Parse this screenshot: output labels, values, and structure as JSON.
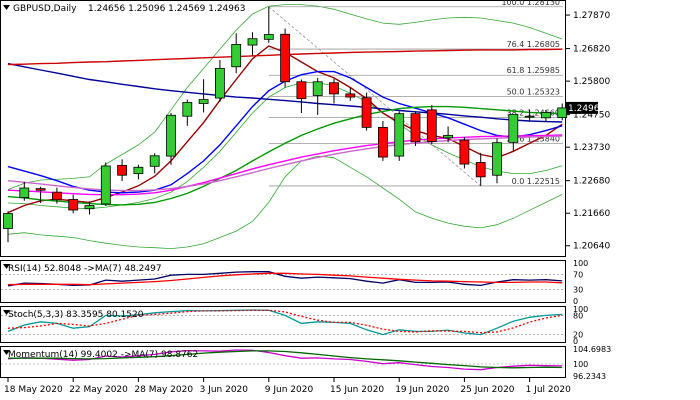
{
  "colors": {
    "bull": "#33cc33",
    "bear": "#ff0000",
    "candle_outline": "#000000",
    "ma_darkred": "#990000",
    "ma_blue": "#0000ff",
    "ma_navy": "#000099",
    "ma_red": "#cc0000",
    "ma_green": "#009900",
    "ma_magenta": "#ff00ff",
    "ma_violet": "#cc66cc",
    "bollinger": "#33aa33",
    "fib": "#999999",
    "rsi": "#000066",
    "rsi_ma": "#ff0000",
    "stoch_main": "#009999",
    "stoch_signal": "#ff0000",
    "momentum": "#cc00cc",
    "momentum_ma": "#006600",
    "label_bg": "#ffffff"
  },
  "main": {
    "title": "GBPUSD,Daily",
    "ohlc_text": "1.24656 1.25096 1.24569 1.24963",
    "current_price_label": "1.24963",
    "price_ticks": [
      "1.27870",
      "1.26820",
      "1.25800",
      "1.24750",
      "1.23730",
      "1.22680",
      "1.21660",
      "1.20640"
    ],
    "price_tick_values": [
      1.2787,
      1.2682,
      1.258,
      1.2475,
      1.2373,
      1.2268,
      1.2166,
      1.2064
    ],
    "fib_levels": [
      {
        "label": "100.0 1.28130",
        "value": 1.2813
      },
      {
        "label": "76.4 1.26805",
        "value": 1.26805
      },
      {
        "label": "61.8 1.25985",
        "value": 1.25985
      },
      {
        "label": "50.0 1.25323",
        "value": 1.25323
      },
      {
        "label": "38.2 1.24660",
        "value": 1.2466
      },
      {
        "label": "23.6 1.23840",
        "value": 1.2384
      },
      {
        "label": "0.0 1.22515",
        "value": 1.22515
      }
    ]
  },
  "rsi": {
    "label": "RSI(14) 52.8048 ->MA(7) 48.2497",
    "ticks": [
      "100",
      "70",
      "30",
      "0"
    ],
    "tick_values": [
      100,
      70,
      30,
      0
    ]
  },
  "stoch": {
    "label": "Stoch(5,3,3) 83.3595 80.1520",
    "ticks": [
      "100",
      "80",
      "20",
      "0"
    ],
    "tick_values": [
      100,
      80,
      20,
      0
    ]
  },
  "momentum": {
    "label": "Momentum(14) 99.4002 ->MA(7) 98.8762",
    "ticks": [
      "104.6983",
      "100",
      "96.2343"
    ],
    "tick_values": [
      104.6983,
      100,
      96.2343
    ]
  },
  "x_axis": {
    "labels": [
      "18 May 2020",
      "22 May 2020",
      "28 May 2020",
      "3 Jun 2020",
      "9 Jun 2020",
      "15 Jun 2020",
      "19 Jun 2020",
      "25 Jun 2020",
      "1 Jul 2020"
    ],
    "label_index": [
      0,
      4,
      8,
      12,
      16,
      20,
      24,
      28,
      32
    ]
  },
  "chart_data": {
    "type": "candlestick",
    "ylim": [
      1.2035,
      1.2828
    ],
    "candles": [
      {
        "o": 1.2118,
        "h": 1.2172,
        "l": 1.2075,
        "c": 1.2165
      },
      {
        "o": 1.2215,
        "h": 1.2264,
        "l": 1.2205,
        "c": 1.2245
      },
      {
        "o": 1.2243,
        "h": 1.2249,
        "l": 1.2198,
        "c": 1.2238
      },
      {
        "o": 1.2232,
        "h": 1.2246,
        "l": 1.2196,
        "c": 1.2208
      },
      {
        "o": 1.2209,
        "h": 1.2224,
        "l": 1.2166,
        "c": 1.2176
      },
      {
        "o": 1.218,
        "h": 1.2203,
        "l": 1.2162,
        "c": 1.219
      },
      {
        "o": 1.2195,
        "h": 1.2325,
        "l": 1.2189,
        "c": 1.2314
      },
      {
        "o": 1.2316,
        "h": 1.2335,
        "l": 1.2267,
        "c": 1.2285
      },
      {
        "o": 1.229,
        "h": 1.2318,
        "l": 1.2272,
        "c": 1.231
      },
      {
        "o": 1.2313,
        "h": 1.2354,
        "l": 1.2291,
        "c": 1.2346
      },
      {
        "o": 1.2345,
        "h": 1.248,
        "l": 1.2318,
        "c": 1.2473
      },
      {
        "o": 1.247,
        "h": 1.2522,
        "l": 1.244,
        "c": 1.2513
      },
      {
        "o": 1.251,
        "h": 1.2586,
        "l": 1.2482,
        "c": 1.2522
      },
      {
        "o": 1.2527,
        "h": 1.2646,
        "l": 1.2515,
        "c": 1.262
      },
      {
        "o": 1.2625,
        "h": 1.273,
        "l": 1.2605,
        "c": 1.2695
      },
      {
        "o": 1.2693,
        "h": 1.2733,
        "l": 1.266,
        "c": 1.2713
      },
      {
        "o": 1.2711,
        "h": 1.2812,
        "l": 1.27,
        "c": 1.2726
      },
      {
        "o": 1.2727,
        "h": 1.2745,
        "l": 1.256,
        "c": 1.2578
      },
      {
        "o": 1.2578,
        "h": 1.2585,
        "l": 1.248,
        "c": 1.2525
      },
      {
        "o": 1.2535,
        "h": 1.259,
        "l": 1.2474,
        "c": 1.2578
      },
      {
        "o": 1.2575,
        "h": 1.2587,
        "l": 1.251,
        "c": 1.254
      },
      {
        "o": 1.254,
        "h": 1.2559,
        "l": 1.2518,
        "c": 1.253
      },
      {
        "o": 1.2528,
        "h": 1.2544,
        "l": 1.2425,
        "c": 1.2435
      },
      {
        "o": 1.2435,
        "h": 1.2455,
        "l": 1.233,
        "c": 1.2342
      },
      {
        "o": 1.2345,
        "h": 1.2485,
        "l": 1.233,
        "c": 1.2478
      },
      {
        "o": 1.2478,
        "h": 1.2485,
        "l": 1.2377,
        "c": 1.239
      },
      {
        "o": 1.249,
        "h": 1.2505,
        "l": 1.2383,
        "c": 1.2391
      },
      {
        "o": 1.2402,
        "h": 1.2438,
        "l": 1.2388,
        "c": 1.241
      },
      {
        "o": 1.2395,
        "h": 1.2405,
        "l": 1.2306,
        "c": 1.232
      },
      {
        "o": 1.2325,
        "h": 1.2355,
        "l": 1.2252,
        "c": 1.228
      },
      {
        "o": 1.2285,
        "h": 1.24,
        "l": 1.226,
        "c": 1.2387
      },
      {
        "o": 1.2388,
        "h": 1.2477,
        "l": 1.2362,
        "c": 1.2476
      },
      {
        "o": 1.2468,
        "h": 1.2491,
        "l": 1.2456,
        "c": 1.247
      },
      {
        "o": 1.2465,
        "h": 1.249,
        "l": 1.2455,
        "c": 1.2482
      },
      {
        "o": 1.2466,
        "h": 1.251,
        "l": 1.2457,
        "c": 1.2496
      }
    ],
    "overlays": [
      {
        "color": "ma_darkred",
        "values": [
          1.2168,
          1.219,
          1.2205,
          1.221,
          1.2205,
          1.22,
          1.2215,
          1.2232,
          1.2252,
          1.2282,
          1.233,
          1.239,
          1.245,
          1.252,
          1.2585,
          1.265,
          1.269,
          1.267,
          1.264,
          1.261,
          1.259,
          1.256,
          1.2525,
          1.248,
          1.245,
          1.2425,
          1.241,
          1.24,
          1.2375,
          1.235,
          1.234,
          1.236,
          1.2385,
          1.241,
          1.2445
        ]
      },
      {
        "color": "ma_blue",
        "values": [
          1.2312,
          1.2298,
          1.2284,
          1.2268,
          1.225,
          1.2238,
          1.2232,
          1.223,
          1.2232,
          1.2238,
          1.2255,
          1.229,
          1.233,
          1.238,
          1.244,
          1.25,
          1.255,
          1.258,
          1.26,
          1.261,
          1.261,
          1.259,
          1.256,
          1.253,
          1.251,
          1.2495,
          1.248,
          1.2465,
          1.2445,
          1.2425,
          1.241,
          1.2405,
          1.2412,
          1.2425,
          1.244
        ]
      },
      {
        "color": "ma_navy",
        "values": [
          1.2635,
          1.2625,
          1.2615,
          1.2605,
          1.2595,
          1.2585,
          1.2578,
          1.257,
          1.2563,
          1.2556,
          1.255,
          1.2545,
          1.254,
          1.2535,
          1.253,
          1.2527,
          1.2523,
          1.2519,
          1.2515,
          1.251,
          1.2506,
          1.2502,
          1.2498,
          1.2493,
          1.2488,
          1.2484,
          1.248,
          1.2476,
          1.2471,
          1.2467,
          1.2462,
          1.2458,
          1.2455,
          1.2453,
          1.2452
        ]
      },
      {
        "color": "ma_red",
        "values": [
          1.2632,
          1.2633,
          1.2635,
          1.2636,
          1.2638,
          1.264,
          1.2641,
          1.2643,
          1.2645,
          1.2647,
          1.2649,
          1.2651,
          1.2653,
          1.2655,
          1.2657,
          1.2659,
          1.2661,
          1.2663,
          1.2665,
          1.2667,
          1.2668,
          1.267,
          1.2671,
          1.2672,
          1.2673,
          1.2674,
          1.2675,
          1.2676,
          1.2677,
          1.2678,
          1.2678,
          1.2678,
          1.2679,
          1.2679,
          1.268
        ]
      },
      {
        "color": "ma_green",
        "values": [
          1.2218,
          1.2214,
          1.2208,
          1.2204,
          1.22,
          1.2196,
          1.2193,
          1.2192,
          1.2194,
          1.22,
          1.2212,
          1.2228,
          1.225,
          1.2275,
          1.23,
          1.233,
          1.2358,
          1.2385,
          1.241,
          1.243,
          1.2448,
          1.2462,
          1.2475,
          1.2485,
          1.2494,
          1.2498,
          1.25,
          1.25,
          1.2498,
          1.2494,
          1.249,
          1.2486,
          1.2482,
          1.248,
          1.2478
        ]
      },
      {
        "color": "ma_magenta",
        "values": [
          1.2238,
          1.2236,
          1.2233,
          1.223,
          1.2227,
          1.2225,
          1.2224,
          1.2224,
          1.2226,
          1.223,
          1.2238,
          1.225,
          1.2262,
          1.2276,
          1.229,
          1.2305,
          1.2318,
          1.233,
          1.2342,
          1.2352,
          1.2362,
          1.237,
          1.2378,
          1.2384,
          1.239,
          1.2395,
          1.2399,
          1.2402,
          1.2404,
          1.2406,
          1.2407,
          1.2408,
          1.2409,
          1.241,
          1.2411
        ]
      },
      {
        "color": "ma_violet",
        "values": [
          1.2268,
          1.2263,
          1.2258,
          1.2252,
          1.2247,
          1.2242,
          1.2239,
          1.2237,
          1.2237,
          1.2239,
          1.2243,
          1.225,
          1.2258,
          1.2268,
          1.228,
          1.2293,
          1.2306,
          1.2318,
          1.233,
          1.2341,
          1.2351,
          1.236,
          1.2368,
          1.2375,
          1.2381,
          1.2386,
          1.239,
          1.2394,
          1.2397,
          1.2399,
          1.2401,
          1.2403,
          1.2405,
          1.2406,
          1.2408
        ]
      },
      {
        "color": "bollinger",
        "values": [
          1.224,
          1.226,
          1.227,
          1.2272,
          1.2275,
          1.228,
          1.232,
          1.235,
          1.238,
          1.242,
          1.249,
          1.256,
          1.262,
          1.268,
          1.274,
          1.279,
          1.2815,
          1.282,
          1.282,
          1.2815,
          1.2805,
          1.279,
          1.2775,
          1.2762,
          1.2758,
          1.2764,
          1.2772,
          1.2778,
          1.278,
          1.2778,
          1.277,
          1.2762,
          1.2748,
          1.273,
          1.2712
        ]
      },
      {
        "color": "bollinger",
        "values": [
          1.2198,
          1.2196,
          1.219,
          1.2186,
          1.2182,
          1.218,
          1.2185,
          1.2192,
          1.22,
          1.2212,
          1.2232,
          1.2265,
          1.231,
          1.236,
          1.242,
          1.248,
          1.253,
          1.256,
          1.2575,
          1.2575,
          1.2565,
          1.2542,
          1.2515,
          1.248,
          1.2445,
          1.241,
          1.238,
          1.2355,
          1.2333,
          1.2312,
          1.2298,
          1.229,
          1.229,
          1.23,
          1.2315
        ]
      },
      {
        "color": "bollinger",
        "values": [
          1.21,
          1.2105,
          1.2098,
          1.2094,
          1.209,
          1.208,
          1.2072,
          1.2065,
          1.206,
          1.2058,
          1.2055,
          1.206,
          1.207,
          1.209,
          1.211,
          1.214,
          1.22,
          1.228,
          1.233,
          1.2345,
          1.234,
          1.231,
          1.228,
          1.2245,
          1.221,
          1.217,
          1.215,
          1.2135,
          1.2125,
          1.212,
          1.213,
          1.215,
          1.2175,
          1.22,
          1.2225
        ]
      }
    ],
    "rsi_values": [
      40,
      47,
      46,
      44,
      41,
      42,
      55,
      52,
      55,
      58,
      68,
      70,
      70,
      73,
      76,
      77,
      77,
      65,
      60,
      63,
      61,
      59,
      52,
      47,
      56,
      49,
      49,
      50,
      44,
      41,
      50,
      56,
      55,
      56,
      53
    ],
    "rsi_ma_values": [
      43,
      44,
      44,
      44,
      44,
      43,
      45,
      47,
      49,
      51,
      54,
      58,
      62,
      66,
      69,
      71,
      73,
      73,
      71,
      70,
      68,
      66,
      63,
      60,
      57,
      55,
      53,
      52,
      51,
      50,
      49,
      49,
      50,
      50,
      48
    ],
    "stoch_values": [
      30,
      50,
      60,
      55,
      40,
      45,
      80,
      78,
      82,
      88,
      92,
      95,
      94,
      95,
      96,
      97,
      96,
      80,
      55,
      60,
      58,
      55,
      35,
      20,
      35,
      30,
      30,
      34,
      25,
      20,
      40,
      62,
      74,
      80,
      83
    ],
    "stoch_signal_values": [
      40,
      42,
      47,
      55,
      52,
      47,
      55,
      68,
      80,
      83,
      87,
      92,
      94,
      94,
      95,
      96,
      96,
      91,
      77,
      65,
      58,
      58,
      49,
      37,
      30,
      28,
      32,
      31,
      30,
      26,
      28,
      41,
      59,
      72,
      80
    ],
    "momentum_values": [
      101.6,
      102.0,
      101.8,
      101.5,
      101.2,
      101.4,
      102.5,
      102.2,
      102.6,
      103.0,
      103.8,
      104.2,
      104.1,
      104.0,
      104.4,
      104.3,
      103.6,
      102.6,
      101.8,
      101.9,
      101.6,
      101.4,
      100.8,
      100.1,
      100.4,
      99.8,
      99.2,
      98.9,
      98.4,
      98.2,
      98.9,
      99.3,
      99.6,
      99.5,
      99.4
    ],
    "momentum_ma_values": [
      101.8,
      101.8,
      101.8,
      101.8,
      101.7,
      101.6,
      101.7,
      101.9,
      102.1,
      102.3,
      102.6,
      103.0,
      103.4,
      103.7,
      103.9,
      104.1,
      104.1,
      103.9,
      103.5,
      103.0,
      102.5,
      102.0,
      101.6,
      101.3,
      101.0,
      100.6,
      100.2,
      99.8,
      99.5,
      99.1,
      98.9,
      98.8,
      98.9,
      99.0,
      98.9
    ]
  }
}
